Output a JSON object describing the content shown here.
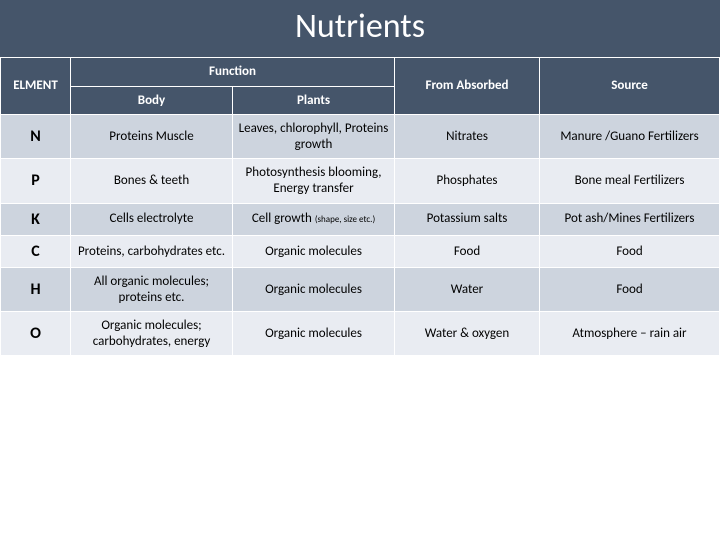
{
  "title": "Nutrients",
  "colors": {
    "header_bg": "#45556a",
    "row_alt_a": "#cdd4de",
    "row_alt_b": "#e9ecf2"
  },
  "headers": {
    "element": "ELMENT",
    "function": "Function",
    "body": "Body",
    "plants": "Plants",
    "absorbed": "From Absorbed",
    "source": "Source"
  },
  "rows": [
    {
      "element": "N",
      "body": "Proteins Muscle",
      "plants": "Leaves, chlorophyll, Proteins growth",
      "absorbed": "Nitrates",
      "source": "Manure /Guano Fertilizers"
    },
    {
      "element": "P",
      "body": "Bones & teeth",
      "plants": "Photosynthesis blooming, Energy transfer",
      "absorbed": "Phosphates",
      "source": "Bone meal Fertilizers"
    },
    {
      "element": "K",
      "body": "Cells electrolyte",
      "plants_prefix": "Cell growth ",
      "plants_note": "(shape, size etc.)",
      "absorbed": "Potassium salts",
      "source": "Pot ash/Mines Fertilizers"
    },
    {
      "element": "C",
      "body": "Proteins, carbohydrates etc.",
      "plants": "Organic molecules",
      "absorbed": "Food",
      "source": "Food"
    },
    {
      "element": "H",
      "body": "All organic molecules; proteins etc.",
      "plants": "Organic molecules",
      "absorbed": "Water",
      "source": "Food"
    },
    {
      "element": "O",
      "body": "Organic molecules; carbohydrates, energy",
      "plants": "Organic molecules",
      "absorbed": "Water & oxygen",
      "source": "Atmosphere – rain air"
    }
  ]
}
